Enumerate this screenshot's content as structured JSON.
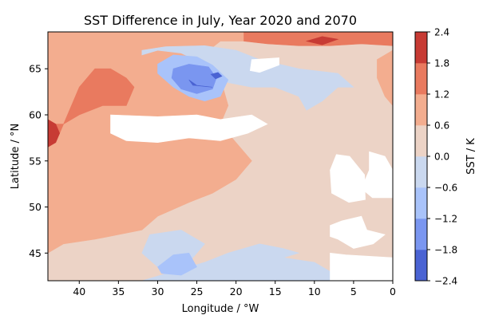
{
  "chart_data": {
    "type": "contour",
    "title": "SST Difference in July, Year 2020 and 2070",
    "xlabel": "Longitude / °W",
    "ylabel": "Latitude / °N",
    "xlim": [
      44,
      0
    ],
    "ylim": [
      42,
      69
    ],
    "x_ticks": [
      40,
      35,
      30,
      25,
      20,
      15,
      10,
      5,
      0
    ],
    "y_ticks": [
      45,
      50,
      55,
      60,
      65
    ],
    "colorbar": {
      "label": "SST / K",
      "levels": [
        -2.4,
        -1.8,
        -1.2,
        -0.6,
        0.0,
        0.6,
        1.2,
        1.8,
        2.4
      ],
      "tick_labels": [
        "−2.4",
        "−1.8",
        "−1.2",
        "−0.6",
        "0.0",
        "0.6",
        "1.2",
        "1.8",
        "2.4"
      ],
      "colors": [
        "#4a63d3",
        "#7a96f0",
        "#a9c3fa",
        "#cad8ef",
        "#ecd3c6",
        "#f3ad8f",
        "#e97a5f",
        "#c73b34"
      ]
    },
    "regions": [
      {
        "name": "band-0.0-0.6",
        "level": 4,
        "polygons": [
          [
            [
              44,
              42
            ],
            [
              0,
              42
            ],
            [
              0,
              69
            ],
            [
              44,
              69
            ]
          ]
        ]
      },
      {
        "name": "band-0.6-1.2",
        "level": 5,
        "polygons": [
          [
            [
              44,
              45
            ],
            [
              42,
              46
            ],
            [
              38,
              46.5
            ],
            [
              32,
              47.5
            ],
            [
              30,
              49
            ],
            [
              26,
              50.5
            ],
            [
              23,
              51.5
            ],
            [
              20,
              53
            ],
            [
              18,
              55
            ],
            [
              20,
              57
            ],
            [
              22,
              59
            ],
            [
              21,
              61
            ],
            [
              22,
              64
            ],
            [
              25,
              66
            ],
            [
              22,
              68
            ],
            [
              12,
              68
            ],
            [
              5,
              68
            ],
            [
              0,
              67.5
            ],
            [
              0,
              69
            ],
            [
              44,
              69
            ]
          ],
          [
            [
              2,
              64
            ],
            [
              1,
              62
            ],
            [
              0,
              61
            ],
            [
              0,
              67
            ],
            [
              2,
              66
            ]
          ]
        ]
      },
      {
        "name": "band-1.2-1.8",
        "level": 6,
        "polygons": [
          [
            [
              44,
              57.5
            ],
            [
              42.5,
              58
            ],
            [
              41,
              61
            ],
            [
              40,
              63
            ],
            [
              38,
              65
            ],
            [
              36,
              65
            ],
            [
              34,
              64
            ],
            [
              33,
              63
            ],
            [
              34,
              61
            ],
            [
              37,
              61
            ],
            [
              40,
              60
            ],
            [
              42,
              59
            ],
            [
              44,
              59
            ]
          ],
          [
            [
              19,
              69
            ],
            [
              19,
              68
            ],
            [
              16,
              67.7
            ],
            [
              12,
              67.5
            ],
            [
              8,
              67.5
            ],
            [
              4,
              67.7
            ],
            [
              0,
              67.5
            ],
            [
              0,
              69
            ]
          ]
        ]
      },
      {
        "name": "band-1.8-2.4",
        "level": 7,
        "polygons": [
          [
            [
              44,
              56.5
            ],
            [
              43,
              57
            ],
            [
              42.5,
              58
            ],
            [
              43,
              59
            ],
            [
              44,
              59.5
            ]
          ],
          [
            [
              11,
              68
            ],
            [
              9,
              68.5
            ],
            [
              7,
              68.2
            ],
            [
              9,
              67.6
            ]
          ]
        ]
      },
      {
        "name": "band-neg0.6-0.0",
        "level": 3,
        "polygons": [
          [
            [
              32,
              66.5
            ],
            [
              30,
              67
            ],
            [
              27,
              66.7
            ],
            [
              24,
              65.5
            ],
            [
              21,
              63.5
            ],
            [
              18,
              63
            ],
            [
              15,
              63
            ],
            [
              12,
              62
            ],
            [
              11,
              60.5
            ],
            [
              9,
              61.5
            ],
            [
              7,
              63
            ],
            [
              5,
              63
            ],
            [
              7,
              64.5
            ],
            [
              12,
              65
            ],
            [
              17,
              66
            ],
            [
              20,
              67
            ],
            [
              24,
              67.5
            ],
            [
              29,
              67.4
            ],
            [
              32,
              67
            ]
          ],
          [
            [
              44,
              42
            ],
            [
              32,
              42
            ],
            [
              28,
              43
            ],
            [
              24,
              44
            ],
            [
              21,
              45
            ],
            [
              17,
              46
            ],
            [
              14,
              45.5
            ],
            [
              12,
              45
            ],
            [
              14,
              44.5
            ],
            [
              10,
              44
            ],
            [
              8,
              43
            ],
            [
              5,
              42
            ]
          ],
          [
            [
              31,
              47
            ],
            [
              27,
              47.5
            ],
            [
              24,
              46
            ],
            [
              26,
              44
            ],
            [
              30,
              43.5
            ],
            [
              32,
              45
            ]
          ]
        ]
      },
      {
        "name": "band-neg1.2-neg0.6",
        "level": 2,
        "polygons": [
          [
            [
              30,
              65.5
            ],
            [
              28,
              66.5
            ],
            [
              25,
              66.3
            ],
            [
              23,
              65.4
            ],
            [
              21,
              63.8
            ],
            [
              22,
              62
            ],
            [
              24,
              61.5
            ],
            [
              26,
              62
            ],
            [
              28,
              63
            ],
            [
              30,
              64.5
            ]
          ],
          [
            [
              30,
              43.5
            ],
            [
              28,
              44.8
            ],
            [
              26,
              45
            ],
            [
              25,
              43.5
            ],
            [
              27,
              42.6
            ],
            [
              29.5,
              42.8
            ]
          ]
        ]
      },
      {
        "name": "band-neg1.8-neg1.2",
        "level": 1,
        "polygons": [
          [
            [
              28,
              65
            ],
            [
              26,
              65.5
            ],
            [
              23.5,
              65.2
            ],
            [
              22.5,
              64
            ],
            [
              23,
              62.8
            ],
            [
              25,
              62.3
            ],
            [
              27,
              62.8
            ],
            [
              28.2,
              64
            ]
          ]
        ]
      },
      {
        "name": "band-neg2.4-neg1.8",
        "level": 0,
        "polygons": [
          [
            [
              26,
              63.8
            ],
            [
              25,
              63.2
            ],
            [
              23,
              63
            ],
            [
              25.5,
              63.2
            ]
          ],
          [
            [
              23.2,
              64.4
            ],
            [
              22.3,
              64.6
            ],
            [
              21.8,
              64.2
            ],
            [
              22.6,
              63.9
            ]
          ]
        ]
      },
      {
        "name": "no-data",
        "level": -1,
        "polygons": [
          [
            [
              18,
              66
            ],
            [
              14.5,
              66.2
            ],
            [
              14.5,
              65.4
            ],
            [
              17,
              64.6
            ],
            [
              18.2,
              64.8
            ]
          ],
          [
            [
              36,
              60
            ],
            [
              30,
              59.8
            ],
            [
              25,
              60
            ],
            [
              22,
              59.5
            ],
            [
              18,
              60
            ],
            [
              16,
              59
            ],
            [
              18.5,
              58
            ],
            [
              22,
              57.2
            ],
            [
              26,
              57.5
            ],
            [
              30,
              57
            ],
            [
              34,
              57.2
            ],
            [
              36,
              58
            ]
          ],
          [
            [
              8,
              48
            ],
            [
              6.5,
              48.5
            ],
            [
              4,
              49
            ],
            [
              3.3,
              47.5
            ],
            [
              1,
              47
            ],
            [
              2.5,
              46
            ],
            [
              5,
              45.5
            ],
            [
              7,
              46.5
            ],
            [
              8,
              46.8
            ]
          ],
          [
            [
              3,
              56
            ],
            [
              1,
              55.5
            ],
            [
              0,
              54
            ],
            [
              0,
              51
            ],
            [
              2.6,
              51
            ],
            [
              4,
              52
            ],
            [
              3,
              54
            ]
          ],
          [
            [
              8,
              54
            ],
            [
              7.8,
              51.5
            ],
            [
              5.6,
              50.5
            ],
            [
              3.5,
              50.8
            ],
            [
              3.6,
              53.5
            ],
            [
              5.5,
              55.5
            ],
            [
              7.2,
              55.7
            ]
          ],
          [
            [
              8,
              45
            ],
            [
              6,
              44.8
            ],
            [
              0,
              44.5
            ],
            [
              0,
              42
            ],
            [
              8,
              42
            ]
          ]
        ]
      }
    ]
  }
}
